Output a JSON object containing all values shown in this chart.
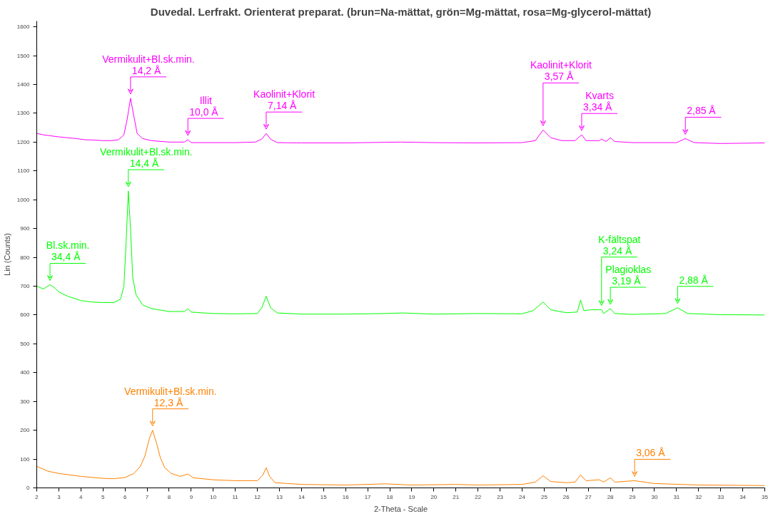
{
  "chart_data": {
    "type": "line",
    "title": "Duvedal. Lerfrakt. Orienterat preparat. (brun=Na-mättat, grön=Mg-mättat, rosa=Mg-glycerol-mättat)",
    "xlabel": "2-Theta - Scale",
    "ylabel": "Lin (Counts)",
    "xlim": [
      2,
      35
    ],
    "xticks": [
      2,
      3,
      4,
      5,
      6,
      7,
      8,
      9,
      10,
      11,
      12,
      13,
      14,
      15,
      16,
      17,
      18,
      19,
      20,
      21,
      22,
      23,
      24,
      25,
      26,
      27,
      28,
      29,
      30,
      31,
      32,
      33,
      34,
      35
    ],
    "ylim": [
      0,
      1620
    ],
    "yticks": [
      0,
      100,
      200,
      300,
      400,
      500,
      600,
      700,
      800,
      900,
      1000,
      1100,
      1200,
      1300,
      1400,
      1500,
      1600
    ],
    "grid": false,
    "marker": "none",
    "line_style": "solid",
    "series": [
      {
        "color": "#ff00ff",
        "x": [
          2.0,
          2.3,
          2.6,
          3.0,
          3.4,
          3.8,
          4.2,
          4.6,
          5.0,
          5.4,
          5.7,
          5.95,
          6.1,
          6.25,
          6.4,
          6.55,
          6.8,
          7.2,
          8.0,
          8.7,
          8.85,
          9.0,
          10.0,
          11.0,
          11.9,
          12.2,
          12.4,
          12.6,
          12.9,
          14,
          16,
          18.5,
          20,
          22,
          24,
          24.6,
          24.95,
          25.3,
          25.8,
          26.4,
          26.7,
          26.9,
          27.5,
          27.6,
          27.8,
          28.0,
          28.2,
          29,
          31.0,
          31.4,
          31.8,
          33,
          35
        ],
        "values": [
          1230,
          1225,
          1222,
          1218,
          1215,
          1212,
          1208,
          1207,
          1205,
          1205,
          1208,
          1225,
          1280,
          1352,
          1290,
          1230,
          1212,
          1205,
          1200,
          1200,
          1208,
          1198,
          1198,
          1198,
          1200,
          1210,
          1230,
          1210,
          1198,
          1197,
          1197,
          1200,
          1198,
          1197,
          1198,
          1205,
          1242,
          1215,
          1205,
          1205,
          1225,
          1205,
          1205,
          1210,
          1202,
          1215,
          1202,
          1198,
          1198,
          1212,
          1198,
          1195,
          1197
        ]
      },
      {
        "color": "#00ff00",
        "x": [
          2.0,
          2.3,
          2.6,
          2.8,
          3.0,
          3.4,
          4.0,
          4.5,
          5.0,
          5.5,
          5.8,
          5.95,
          6.05,
          6.15,
          6.25,
          6.35,
          6.5,
          6.8,
          7.2,
          8.0,
          8.7,
          8.85,
          9.0,
          10,
          11,
          12.0,
          12.2,
          12.4,
          12.6,
          12.9,
          14,
          16,
          17.7,
          18.6,
          20,
          22,
          24,
          24.5,
          24.95,
          25.3,
          26,
          26.5,
          26.65,
          26.8,
          27.1,
          27.5,
          27.6,
          27.7,
          28.0,
          28.2,
          29,
          30.5,
          31.05,
          31.5,
          33,
          35
        ],
        "values": [
          700,
          690,
          705,
          695,
          680,
          665,
          650,
          645,
          643,
          643,
          655,
          700,
          850,
          1030,
          900,
          730,
          670,
          635,
          622,
          612,
          612,
          622,
          610,
          605,
          604,
          605,
          625,
          665,
          625,
          607,
          603,
          603,
          605,
          607,
          603,
          605,
          604,
          615,
          645,
          618,
          608,
          610,
          652,
          615,
          618,
          618,
          618,
          605,
          622,
          605,
          602,
          605,
          625,
          605,
          601,
          600
        ]
      },
      {
        "color": "#ff8000",
        "x": [
          2.0,
          2.5,
          3.0,
          3.5,
          4.0,
          5.0,
          5.5,
          6.0,
          6.4,
          6.7,
          6.9,
          7.1,
          7.25,
          7.45,
          7.6,
          7.8,
          8.1,
          8.5,
          8.85,
          9.1,
          10,
          11,
          12.0,
          12.25,
          12.4,
          12.55,
          12.8,
          14,
          16,
          17.8,
          19,
          21,
          22,
          24,
          24.6,
          24.95,
          25.3,
          26,
          26.4,
          26.65,
          26.9,
          27.5,
          27.7,
          28.0,
          28.2,
          29.1,
          30,
          32,
          35
        ],
        "values": [
          75,
          58,
          50,
          45,
          40,
          33,
          32,
          36,
          50,
          75,
          110,
          170,
          200,
          150,
          105,
          70,
          50,
          40,
          48,
          35,
          28,
          25,
          25,
          45,
          70,
          40,
          18,
          12,
          10,
          14,
          10,
          12,
          10,
          12,
          20,
          42,
          22,
          18,
          20,
          45,
          25,
          28,
          20,
          35,
          20,
          25,
          15,
          10,
          8
        ]
      }
    ],
    "annotations": [
      {
        "text": "Vermikulit+Bl.sk.min.\n14,2 Å",
        "x": 6.25,
        "y": 1352
      },
      {
        "text": "Illit\n10,0 Å",
        "x": 8.85,
        "y": 1208
      },
      {
        "text": "Kaolinit+Klorit\n7,14 Å",
        "x": 12.4,
        "y": 1230
      },
      {
        "text": "Kaolinit+Klorit\n3,57 Å",
        "x": 24.95,
        "y": 1242
      },
      {
        "text": "Kvarts\n3,34 Å",
        "x": 26.7,
        "y": 1225
      },
      {
        "text": "2,85 Å",
        "x": 31.4,
        "y": 1212
      },
      {
        "text": "Vermikulit+Bl.sk.min.\n14,4 Å",
        "x": 6.15,
        "y": 1030
      },
      {
        "text": "Bl.sk.min.\n34,4 Å",
        "x": 2.6,
        "y": 705
      },
      {
        "text": "K-fältspat\n3,24 Å",
        "x": 27.6,
        "y": 618
      },
      {
        "text": "Plagioklas\n3,19 Å",
        "x": 28.0,
        "y": 622
      },
      {
        "text": "2,88 Å",
        "x": 31.05,
        "y": 625
      },
      {
        "text": "Vermikulit+Bl.sk.min.\n12,3 Å",
        "x": 7.25,
        "y": 200
      },
      {
        "text": "3,06 Å",
        "x": 29.1,
        "y": 25
      }
    ]
  }
}
